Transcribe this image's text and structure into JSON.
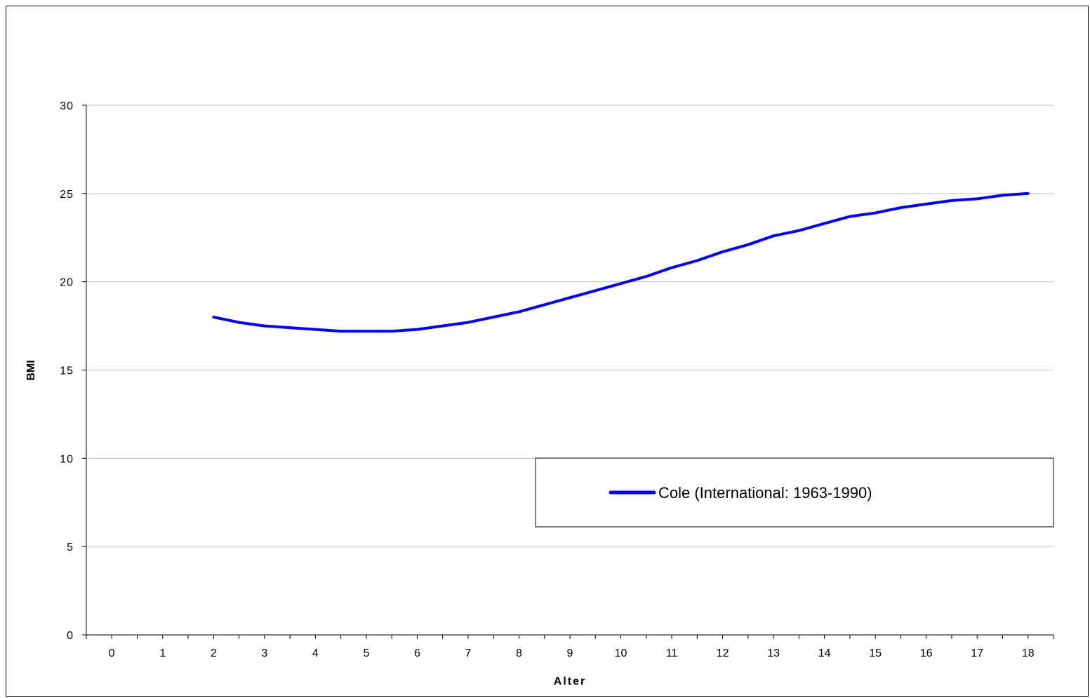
{
  "chart_data": {
    "type": "line",
    "title": "",
    "xlabel": "Alter",
    "ylabel": "BMI",
    "xlim": [
      0,
      18
    ],
    "ylim": [
      0,
      30
    ],
    "x_ticks": [
      "0",
      "1",
      "2",
      "3",
      "4",
      "5",
      "6",
      "7",
      "8",
      "9",
      "10",
      "11",
      "12",
      "13",
      "14",
      "15",
      "16",
      "17",
      "18"
    ],
    "y_ticks": [
      "0",
      "5",
      "10",
      "15",
      "20",
      "25",
      "30"
    ],
    "grid": "horizontal",
    "legend_position": "lower-right",
    "series": [
      {
        "name": "Cole (International: 1963-1990)",
        "color": "#0000ff",
        "x": [
          2,
          2.5,
          3,
          3.5,
          4,
          4.5,
          5,
          5.5,
          6,
          6.5,
          7,
          7.5,
          8,
          8.5,
          9,
          9.5,
          10,
          10.5,
          11,
          11.5,
          12,
          12.5,
          13,
          13.5,
          14,
          14.5,
          15,
          15.5,
          16,
          16.5,
          17,
          17.5,
          18
        ],
        "y": [
          18.0,
          17.7,
          17.5,
          17.4,
          17.3,
          17.2,
          17.2,
          17.2,
          17.3,
          17.5,
          17.7,
          18.0,
          18.3,
          18.7,
          19.1,
          19.5,
          19.9,
          20.3,
          20.8,
          21.2,
          21.7,
          22.1,
          22.6,
          22.9,
          23.3,
          23.7,
          23.9,
          24.2,
          24.4,
          24.6,
          24.7,
          24.9,
          25.0
        ]
      }
    ]
  }
}
